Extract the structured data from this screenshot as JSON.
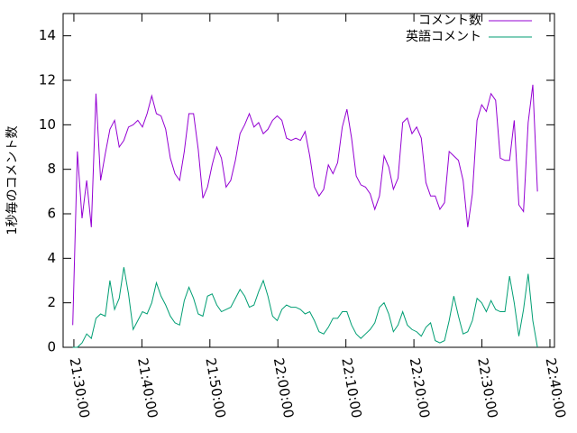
{
  "chart_data": {
    "type": "line",
    "ylabel": "1秒毎のコメント数",
    "x": [
      77390,
      77431,
      77472,
      77513,
      77554,
      77595,
      77636,
      77677,
      77718,
      77759,
      77800,
      77841,
      77882,
      77923,
      77964,
      78005,
      78046,
      78087,
      78128,
      78169,
      78210,
      78251,
      78292,
      78333,
      78374,
      78415,
      78456,
      78497,
      78538,
      78579,
      78620,
      78661,
      78702,
      78743,
      78784,
      78825,
      78866,
      78907,
      78948,
      78989,
      79030,
      79071,
      79112,
      79153,
      79194,
      79235,
      79276,
      79317,
      79358,
      79399,
      79440,
      79481,
      79522,
      79563,
      79604,
      79645,
      79686,
      79727,
      79768,
      79809,
      79850,
      79891,
      79932,
      79973,
      80014,
      80055,
      80096,
      80137,
      80178,
      80219,
      80260,
      80301,
      80342,
      80383,
      80424,
      80465,
      80506,
      80547,
      80588,
      80629,
      80670,
      80711,
      80752,
      80793,
      80834,
      80875,
      80916,
      80957,
      80998,
      81039,
      81080,
      81121,
      81162,
      81203,
      81244,
      81285,
      81326,
      81367,
      81408,
      81449,
      81490
    ],
    "series": [
      {
        "name": "コメント数",
        "color": "#9400d3",
        "values": [
          1.0,
          8.8,
          5.8,
          7.5,
          5.4,
          11.4,
          7.5,
          8.7,
          9.8,
          10.2,
          9.0,
          9.3,
          9.9,
          10.0,
          10.2,
          9.9,
          10.5,
          11.3,
          10.5,
          10.4,
          9.8,
          8.5,
          7.8,
          7.5,
          8.8,
          10.5,
          10.5,
          8.9,
          6.7,
          7.2,
          8.2,
          9.0,
          8.5,
          7.2,
          7.5,
          8.4,
          9.6,
          10.0,
          10.5,
          9.9,
          10.1,
          9.6,
          9.8,
          10.2,
          10.4,
          10.2,
          9.4,
          9.3,
          9.4,
          9.3,
          9.7,
          8.6,
          7.2,
          6.8,
          7.1,
          8.2,
          7.8,
          8.3,
          9.9,
          10.7,
          9.4,
          7.7,
          7.3,
          7.2,
          6.9,
          6.2,
          6.8,
          8.6,
          8.1,
          7.1,
          7.6,
          10.1,
          10.3,
          9.6,
          9.9,
          9.4,
          7.4,
          6.8,
          6.8,
          6.2,
          6.5,
          8.8,
          8.6,
          8.4,
          7.5,
          5.4,
          6.9,
          10.2,
          10.9,
          10.6,
          11.4,
          11.1,
          8.5,
          8.4,
          8.4,
          10.2,
          6.4,
          6.1,
          10.1,
          11.8,
          7.0
        ]
      },
      {
        "name": "英語コメント",
        "color": "#009e73",
        "values": [
          0,
          0,
          0.2,
          0.6,
          0.4,
          1.3,
          1.5,
          1.4,
          3.0,
          1.7,
          2.2,
          3.6,
          2.4,
          0.8,
          1.2,
          1.6,
          1.5,
          2.0,
          2.9,
          2.3,
          1.9,
          1.4,
          1.1,
          1.0,
          2.1,
          2.7,
          2.2,
          1.5,
          1.4,
          2.3,
          2.4,
          1.9,
          1.6,
          1.7,
          1.8,
          2.2,
          2.6,
          2.3,
          1.8,
          1.9,
          2.5,
          3.0,
          2.3,
          1.4,
          1.2,
          1.7,
          1.9,
          1.8,
          1.8,
          1.7,
          1.5,
          1.6,
          1.2,
          0.7,
          0.6,
          0.9,
          1.3,
          1.3,
          1.6,
          1.6,
          1.0,
          0.6,
          0.4,
          0.6,
          0.8,
          1.1,
          1.8,
          2.0,
          1.5,
          0.7,
          1.0,
          1.6,
          1.0,
          0.8,
          0.7,
          0.5,
          0.9,
          1.1,
          0.3,
          0.2,
          0.3,
          1.2,
          2.3,
          1.4,
          0.6,
          0.7,
          1.2,
          2.2,
          2.0,
          1.6,
          2.1,
          1.7,
          1.6,
          1.6,
          3.2,
          2.0,
          0.5,
          1.7,
          3.3,
          1.2,
          0.0
        ]
      }
    ],
    "xlim": [
      77305,
      81640
    ],
    "xticks": [
      {
        "value": 77400,
        "label": "21:30:00"
      },
      {
        "value": 78000,
        "label": "21:40:00"
      },
      {
        "value": 78600,
        "label": "21:50:00"
      },
      {
        "value": 79200,
        "label": "22:00:00"
      },
      {
        "value": 79800,
        "label": "22:10:00"
      },
      {
        "value": 80400,
        "label": "22:20:00"
      },
      {
        "value": 81000,
        "label": "22:30:00"
      },
      {
        "value": 81600,
        "label": "22:40:00"
      }
    ],
    "ylim": [
      0,
      15
    ],
    "yticks": [
      0,
      2,
      4,
      6,
      8,
      10,
      12,
      14
    ],
    "legend": "top-right"
  }
}
